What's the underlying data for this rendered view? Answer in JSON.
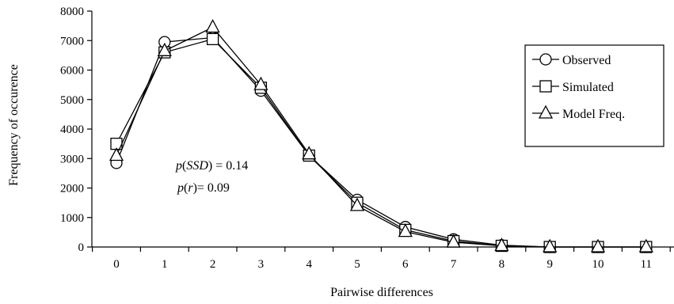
{
  "chart_data": {
    "type": "line",
    "title": "",
    "xlabel": "Pairwise differences",
    "ylabel": "Frequency of occurence",
    "x": [
      0,
      1,
      2,
      3,
      4,
      5,
      6,
      7,
      8,
      9,
      10,
      11
    ],
    "xticks": [
      "0",
      "1",
      "2",
      "3",
      "4",
      "5",
      "6",
      "7",
      "8",
      "9",
      "10",
      "11"
    ],
    "ylim": [
      0,
      8000
    ],
    "yticks": [
      0,
      1000,
      2000,
      3000,
      4000,
      5000,
      6000,
      7000,
      8000
    ],
    "grid": false,
    "legend_position": "right",
    "series": [
      {
        "name": "Observed",
        "marker": "circle",
        "values": [
          2850,
          6950,
          7100,
          5300,
          3100,
          1600,
          680,
          260,
          60,
          0,
          0,
          0
        ]
      },
      {
        "name": "Simulated",
        "marker": "square",
        "values": [
          3500,
          6600,
          7050,
          5400,
          3100,
          1500,
          580,
          200,
          40,
          0,
          0,
          0
        ]
      },
      {
        "name": "Model Freq.",
        "marker": "triangle",
        "values": [
          3100,
          6650,
          7450,
          5500,
          3150,
          1400,
          520,
          160,
          40,
          0,
          0,
          0
        ]
      }
    ],
    "annotations": {
      "ssd_prefix": "p",
      "ssd_var": "SSD",
      "ssd_value": ") = 0.14",
      "r_prefix": "p",
      "r_var": "r",
      "r_value": ")= 0.09"
    }
  }
}
